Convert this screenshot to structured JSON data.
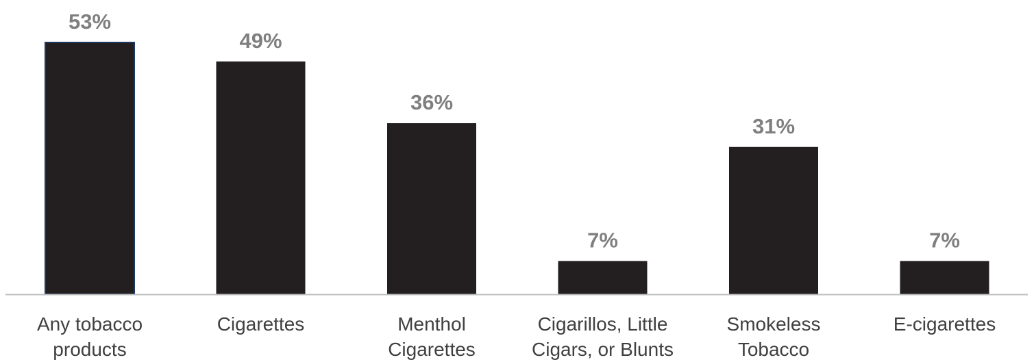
{
  "chart_data": {
    "type": "bar",
    "categories": [
      [
        "Any tobacco",
        "products"
      ],
      [
        "Cigarettes"
      ],
      [
        "Menthol",
        "Cigarettes"
      ],
      [
        "Cigarillos, Little",
        "Cigars, or Blunts"
      ],
      [
        "Smokeless",
        "Tobacco"
      ],
      [
        "E-cigarettes"
      ]
    ],
    "values": [
      53,
      49,
      36,
      7,
      31,
      7
    ],
    "data_labels": [
      "53%",
      "49%",
      "36%",
      "7%",
      "31%",
      "7%"
    ],
    "ylim": [
      0,
      53
    ],
    "grid": false,
    "legend": "none",
    "colors": {
      "bar": "#231f20",
      "first_bar_outline": "#1f3864",
      "data_label": "#7f7f7f",
      "category_label": "#404040",
      "axis": "#bfbfbf"
    }
  }
}
